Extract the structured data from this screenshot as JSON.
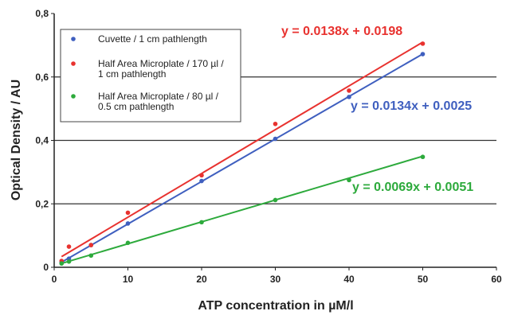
{
  "chart_data": {
    "type": "scatter",
    "xlabel": "ATP concentration in µM/l",
    "ylabel": "Optical Density / AU",
    "xlim": [
      0,
      60
    ],
    "ylim": [
      0,
      0.8
    ],
    "x_ticks": [
      "0",
      "10",
      "20",
      "30",
      "40",
      "50",
      "60"
    ],
    "y_ticks": [
      "0",
      "0,2",
      "0,4",
      "0,6",
      "0,8"
    ],
    "y_gridlines": [
      0.2,
      0.4,
      0.6
    ],
    "legend_position": "top-left",
    "series": [
      {
        "name": "Cuvette / 1 cm pathlength",
        "color": "#3f5fbf",
        "x": [
          1,
          2,
          5,
          10,
          20,
          30,
          40,
          50
        ],
        "y": [
          0.015,
          0.027,
          0.07,
          0.138,
          0.272,
          0.405,
          0.537,
          0.672
        ],
        "trendline": {
          "slope": 0.0134,
          "intercept": 0.0025
        },
        "equation": "y = 0.0134x + 0.0025"
      },
      {
        "name": "Half Area Microplate / 170 µl / 1 cm pathlength",
        "color": "#e8322f",
        "x": [
          1,
          2,
          5,
          10,
          20,
          30,
          40,
          50
        ],
        "y": [
          0.02,
          0.065,
          0.07,
          0.172,
          0.29,
          0.452,
          0.557,
          0.705
        ],
        "trendline": {
          "slope": 0.0138,
          "intercept": 0.0198
        },
        "equation": "y = 0.0138x + 0.0198"
      },
      {
        "name": "Half Area Microplate / 80 µl / 0.5 cm pathlength",
        "color": "#2daa3c",
        "x": [
          1,
          2,
          5,
          10,
          20,
          30,
          40,
          50
        ],
        "y": [
          0.012,
          0.018,
          0.037,
          0.077,
          0.142,
          0.212,
          0.275,
          0.348
        ],
        "trendline": {
          "slope": 0.0069,
          "intercept": 0.0051
        },
        "equation": "y = 0.0069x + 0.0051"
      }
    ]
  }
}
